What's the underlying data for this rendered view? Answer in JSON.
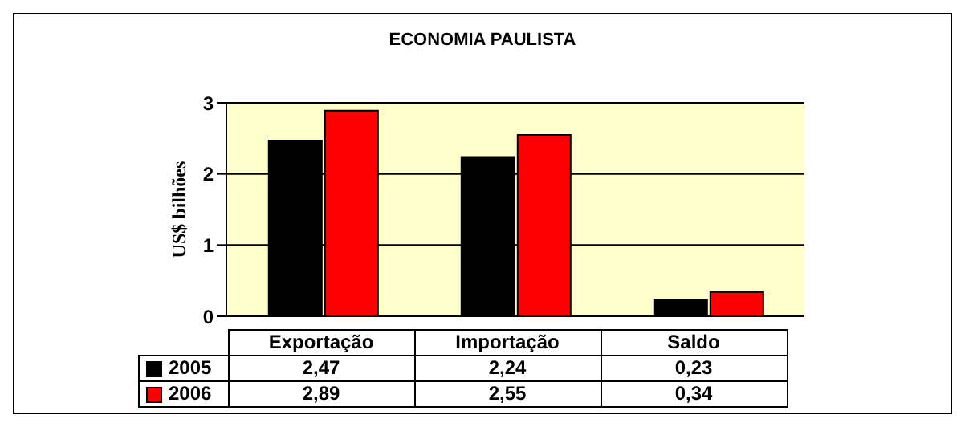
{
  "chart_data": {
    "type": "bar",
    "title": "ECONOMIA PAULISTA",
    "ylabel": "US$ bilhões",
    "categories": [
      "Exportação",
      "Importação",
      "Saldo"
    ],
    "series": [
      {
        "name": "2005",
        "color": "#000000",
        "values": [
          2.47,
          2.24,
          0.23
        ],
        "value_labels": [
          "2,47",
          "2,24",
          "0,23"
        ]
      },
      {
        "name": "2006",
        "color": "#ff0000",
        "values": [
          2.89,
          2.55,
          0.34
        ],
        "value_labels": [
          "2,89",
          "2,55",
          "0,34"
        ]
      }
    ],
    "ylim": [
      0,
      3
    ],
    "yticks": [
      0,
      1,
      2,
      3
    ],
    "grid": "y",
    "legend": "bottom"
  }
}
